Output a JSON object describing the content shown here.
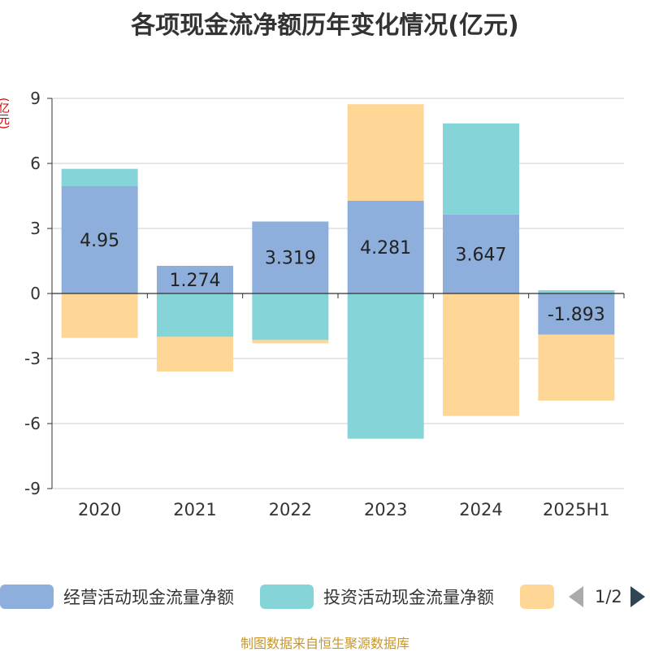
{
  "title": "各项现金流净额历年变化情况(亿元)",
  "unit_label": "(亿元)",
  "source": "制图数据来自恒生聚源数据库",
  "legend": {
    "items": [
      {
        "label": "经营活动现金流量净额",
        "color": "#8eaedb"
      },
      {
        "label": "投资活动现金流量净额",
        "color": "#85d5d8"
      },
      {
        "label": "",
        "color": "#fed797"
      }
    ],
    "page_indicator": "1/2"
  },
  "chart_data": {
    "type": "bar",
    "stacked": true,
    "categories": [
      "2020",
      "2021",
      "2022",
      "2023",
      "2024",
      "2025H1"
    ],
    "ylim": [
      -9,
      9
    ],
    "yticks": [
      "9",
      "6",
      "3",
      "0",
      "-3",
      "-6",
      "-9"
    ],
    "ytick_values": [
      9,
      6,
      3,
      0,
      -3,
      -6,
      -9
    ],
    "grid": true,
    "legend_position": "bottom",
    "series": [
      {
        "name": "经营活动现金流量净额",
        "color": "#8eaedb",
        "values": [
          4.95,
          1.274,
          3.319,
          4.281,
          3.647,
          -1.893
        ],
        "labels": [
          "4.95",
          "1.274",
          "3.319",
          "4.281",
          "3.647",
          "-1.893"
        ]
      },
      {
        "name": "投资活动现金流量净额",
        "color": "#85d5d8",
        "values": [
          0.8,
          -2.0,
          -2.15,
          -6.7,
          4.2,
          0.15
        ]
      },
      {
        "color": "#fed797",
        "values": [
          -2.05,
          -1.6,
          -0.15,
          4.45,
          -5.65,
          -3.05
        ]
      }
    ]
  }
}
